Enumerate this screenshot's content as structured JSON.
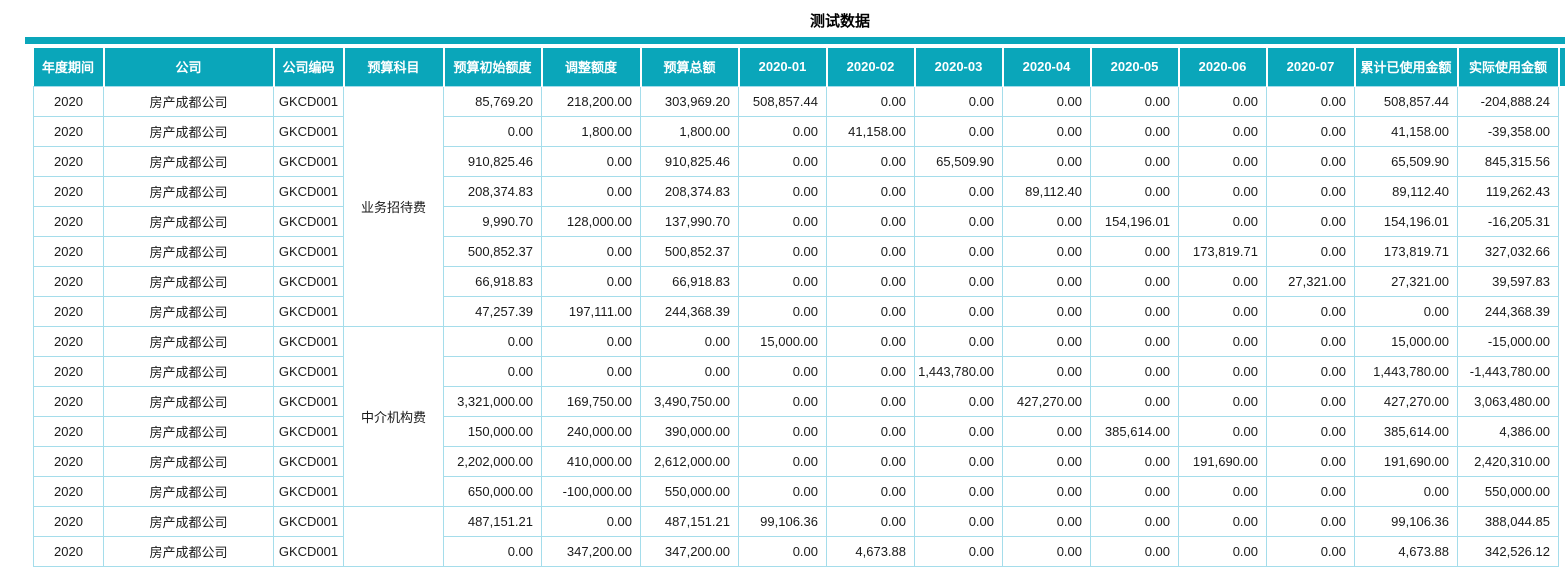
{
  "title": "测试数据",
  "colors": {
    "accent": "#0aa6ba",
    "grid": "#a5ddeb",
    "header_text": "#ffffff",
    "body_text": "#1a1a1a"
  },
  "table": {
    "columns": [
      "年度期间",
      "公司",
      "公司编码",
      "预算科目",
      "预算初始额度",
      "调整额度",
      "预算总额",
      "2020-01",
      "2020-02",
      "2020-03",
      "2020-04",
      "2020-05",
      "2020-06",
      "2020-07",
      "累计已使用金额",
      "实际使用金额"
    ],
    "groups": [
      {
        "label": "业务招待费",
        "span": 8
      },
      {
        "label": "中介机构费",
        "span": 6
      },
      {
        "label": "",
        "span": 2
      }
    ],
    "rows": [
      {
        "year": "2020",
        "company": "房产成都公司",
        "code": "GKCD001",
        "values": [
          "85,769.20",
          "218,200.00",
          "303,969.20",
          "508,857.44",
          "0.00",
          "0.00",
          "0.00",
          "0.00",
          "0.00",
          "0.00",
          "508,857.44",
          "-204,888.24"
        ]
      },
      {
        "year": "2020",
        "company": "房产成都公司",
        "code": "GKCD001",
        "values": [
          "0.00",
          "1,800.00",
          "1,800.00",
          "0.00",
          "41,158.00",
          "0.00",
          "0.00",
          "0.00",
          "0.00",
          "0.00",
          "41,158.00",
          "-39,358.00"
        ]
      },
      {
        "year": "2020",
        "company": "房产成都公司",
        "code": "GKCD001",
        "values": [
          "910,825.46",
          "0.00",
          "910,825.46",
          "0.00",
          "0.00",
          "65,509.90",
          "0.00",
          "0.00",
          "0.00",
          "0.00",
          "65,509.90",
          "845,315.56"
        ]
      },
      {
        "year": "2020",
        "company": "房产成都公司",
        "code": "GKCD001",
        "values": [
          "208,374.83",
          "0.00",
          "208,374.83",
          "0.00",
          "0.00",
          "0.00",
          "89,112.40",
          "0.00",
          "0.00",
          "0.00",
          "89,112.40",
          "119,262.43"
        ]
      },
      {
        "year": "2020",
        "company": "房产成都公司",
        "code": "GKCD001",
        "values": [
          "9,990.70",
          "128,000.00",
          "137,990.70",
          "0.00",
          "0.00",
          "0.00",
          "0.00",
          "154,196.01",
          "0.00",
          "0.00",
          "154,196.01",
          "-16,205.31"
        ]
      },
      {
        "year": "2020",
        "company": "房产成都公司",
        "code": "GKCD001",
        "values": [
          "500,852.37",
          "0.00",
          "500,852.37",
          "0.00",
          "0.00",
          "0.00",
          "0.00",
          "0.00",
          "173,819.71",
          "0.00",
          "173,819.71",
          "327,032.66"
        ]
      },
      {
        "year": "2020",
        "company": "房产成都公司",
        "code": "GKCD001",
        "values": [
          "66,918.83",
          "0.00",
          "66,918.83",
          "0.00",
          "0.00",
          "0.00",
          "0.00",
          "0.00",
          "0.00",
          "27,321.00",
          "27,321.00",
          "39,597.83"
        ]
      },
      {
        "year": "2020",
        "company": "房产成都公司",
        "code": "GKCD001",
        "values": [
          "47,257.39",
          "197,111.00",
          "244,368.39",
          "0.00",
          "0.00",
          "0.00",
          "0.00",
          "0.00",
          "0.00",
          "0.00",
          "0.00",
          "244,368.39"
        ]
      },
      {
        "year": "2020",
        "company": "房产成都公司",
        "code": "GKCD001",
        "values": [
          "0.00",
          "0.00",
          "0.00",
          "15,000.00",
          "0.00",
          "0.00",
          "0.00",
          "0.00",
          "0.00",
          "0.00",
          "15,000.00",
          "-15,000.00"
        ]
      },
      {
        "year": "2020",
        "company": "房产成都公司",
        "code": "GKCD001",
        "values": [
          "0.00",
          "0.00",
          "0.00",
          "0.00",
          "0.00",
          "1,443,780.00",
          "0.00",
          "0.00",
          "0.00",
          "0.00",
          "1,443,780.00",
          "-1,443,780.00"
        ]
      },
      {
        "year": "2020",
        "company": "房产成都公司",
        "code": "GKCD001",
        "values": [
          "3,321,000.00",
          "169,750.00",
          "3,490,750.00",
          "0.00",
          "0.00",
          "0.00",
          "427,270.00",
          "0.00",
          "0.00",
          "0.00",
          "427,270.00",
          "3,063,480.00"
        ]
      },
      {
        "year": "2020",
        "company": "房产成都公司",
        "code": "GKCD001",
        "values": [
          "150,000.00",
          "240,000.00",
          "390,000.00",
          "0.00",
          "0.00",
          "0.00",
          "0.00",
          "385,614.00",
          "0.00",
          "0.00",
          "385,614.00",
          "4,386.00"
        ]
      },
      {
        "year": "2020",
        "company": "房产成都公司",
        "code": "GKCD001",
        "values": [
          "2,202,000.00",
          "410,000.00",
          "2,612,000.00",
          "0.00",
          "0.00",
          "0.00",
          "0.00",
          "0.00",
          "191,690.00",
          "0.00",
          "191,690.00",
          "2,420,310.00"
        ]
      },
      {
        "year": "2020",
        "company": "房产成都公司",
        "code": "GKCD001",
        "values": [
          "650,000.00",
          "-100,000.00",
          "550,000.00",
          "0.00",
          "0.00",
          "0.00",
          "0.00",
          "0.00",
          "0.00",
          "0.00",
          "0.00",
          "550,000.00"
        ]
      },
      {
        "year": "2020",
        "company": "房产成都公司",
        "code": "GKCD001",
        "values": [
          "487,151.21",
          "0.00",
          "487,151.21",
          "99,106.36",
          "0.00",
          "0.00",
          "0.00",
          "0.00",
          "0.00",
          "0.00",
          "99,106.36",
          "388,044.85"
        ]
      },
      {
        "year": "2020",
        "company": "房产成都公司",
        "code": "GKCD001",
        "values": [
          "0.00",
          "347,200.00",
          "347,200.00",
          "0.00",
          "4,673.88",
          "0.00",
          "0.00",
          "0.00",
          "0.00",
          "0.00",
          "4,673.88",
          "342,526.12"
        ]
      }
    ]
  }
}
